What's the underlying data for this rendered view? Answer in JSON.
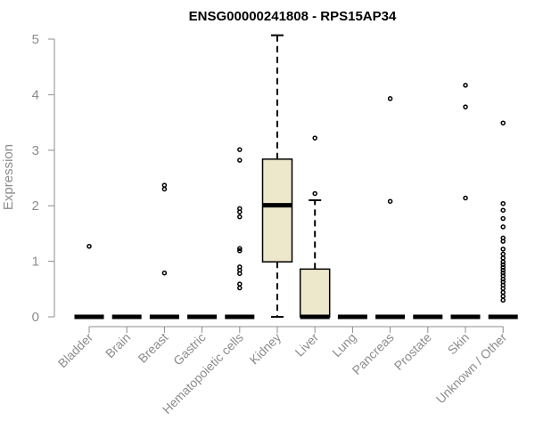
{
  "chart_data": {
    "type": "box",
    "title": "ENSG00000241808 - RPS15AP34",
    "xlabel": "",
    "ylabel": "Expression",
    "ylim": [
      0,
      5
    ],
    "yticks": [
      0,
      1,
      2,
      3,
      4,
      5
    ],
    "grid": false,
    "legend": "none",
    "colors": {
      "box_fill": "#ede7cc",
      "stroke": "#000000",
      "axis_text": "#8c8c8c"
    },
    "categories": [
      "Bladder",
      "Brain",
      "Breast",
      "Gastric",
      "Hematopoietic cells",
      "Kidney",
      "Liver",
      "Lung",
      "Pancreas",
      "Prostate",
      "Skin",
      "Unknown / Other"
    ],
    "boxes": [
      {
        "category": "Bladder",
        "q1": 0,
        "median": 0,
        "q3": 0,
        "whisker_low": 0,
        "whisker_high": 0,
        "outliers": [
          1.27
        ]
      },
      {
        "category": "Brain",
        "q1": 0,
        "median": 0,
        "q3": 0,
        "whisker_low": 0,
        "whisker_high": 0,
        "outliers": []
      },
      {
        "category": "Breast",
        "q1": 0,
        "median": 0,
        "q3": 0,
        "whisker_low": 0,
        "whisker_high": 0,
        "outliers": [
          2.37,
          2.3,
          0.79
        ]
      },
      {
        "category": "Gastric",
        "q1": 0,
        "median": 0,
        "q3": 0,
        "whisker_low": 0,
        "whisker_high": 0,
        "outliers": []
      },
      {
        "category": "Hematopoietic cells",
        "q1": 0,
        "median": 0,
        "q3": 0,
        "whisker_low": 0,
        "whisker_high": 0,
        "outliers": [
          3.01,
          2.82,
          1.95,
          1.89,
          1.8,
          1.23,
          1.19,
          0.9,
          0.84,
          0.78,
          0.59,
          0.52
        ]
      },
      {
        "category": "Kidney",
        "q1": 0.99,
        "median": 2.01,
        "q3": 2.84,
        "whisker_low": 0,
        "whisker_high": 5.07,
        "outliers": []
      },
      {
        "category": "Liver",
        "q1": 0,
        "median": 0,
        "q3": 0.86,
        "whisker_low": 0,
        "whisker_high": 2.1,
        "outliers": [
          3.22,
          2.22
        ]
      },
      {
        "category": "Lung",
        "q1": 0,
        "median": 0,
        "q3": 0,
        "whisker_low": 0,
        "whisker_high": 0,
        "outliers": []
      },
      {
        "category": "Pancreas",
        "q1": 0,
        "median": 0,
        "q3": 0,
        "whisker_low": 0,
        "whisker_high": 0,
        "outliers": [
          3.93,
          2.08
        ]
      },
      {
        "category": "Prostate",
        "q1": 0,
        "median": 0,
        "q3": 0,
        "whisker_low": 0,
        "whisker_high": 0,
        "outliers": []
      },
      {
        "category": "Skin",
        "q1": 0,
        "median": 0,
        "q3": 0,
        "whisker_low": 0,
        "whisker_high": 0,
        "outliers": [
          4.17,
          3.78,
          2.14
        ]
      },
      {
        "category": "Unknown / Other",
        "q1": 0,
        "median": 0,
        "q3": 0,
        "whisker_low": 0,
        "whisker_high": 0,
        "outliers": [
          3.49,
          2.04,
          1.92,
          1.77,
          1.62,
          1.42,
          1.36,
          1.22,
          1.13,
          1.06,
          0.99,
          0.94,
          0.89,
          0.84,
          0.79,
          0.74,
          0.68,
          0.63,
          0.57,
          0.51,
          0.44,
          0.37,
          0.3
        ]
      }
    ]
  }
}
